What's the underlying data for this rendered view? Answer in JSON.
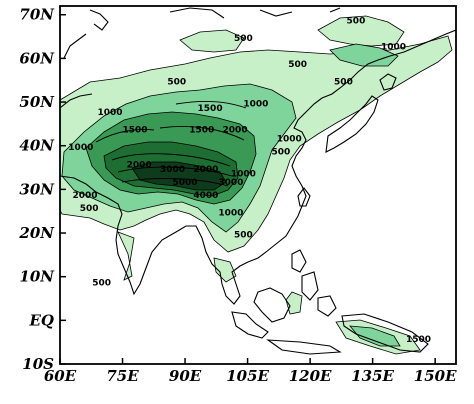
{
  "map": {
    "lon_range": [
      60,
      155
    ],
    "lat_range": [
      -10,
      72
    ],
    "x_ticks": [
      "60E",
      "75E",
      "90E",
      "105E",
      "120E",
      "135E",
      "150E"
    ],
    "x_tick_values": [
      60,
      75,
      90,
      105,
      120,
      135,
      150
    ],
    "y_ticks": [
      "70N",
      "60N",
      "50N",
      "40N",
      "30N",
      "20N",
      "10N",
      "EQ",
      "10S"
    ],
    "y_tick_values": [
      70,
      60,
      50,
      40,
      30,
      20,
      10,
      0,
      -10
    ],
    "shading_colors": [
      "#c8f0c8",
      "#7ed49a",
      "#3a9a55",
      "#1e6e34",
      "#0e3b1c"
    ],
    "coast_color": "#000000",
    "contour_labels": [
      {
        "text": "500",
        "lon": 131,
        "lat": 68
      },
      {
        "text": "500",
        "lon": 104,
        "lat": 64
      },
      {
        "text": "1000",
        "lon": 140,
        "lat": 62
      },
      {
        "text": "500",
        "lon": 117,
        "lat": 58
      },
      {
        "text": "500",
        "lon": 88,
        "lat": 54
      },
      {
        "text": "500",
        "lon": 128,
        "lat": 54
      },
      {
        "text": "1000",
        "lon": 107,
        "lat": 49
      },
      {
        "text": "1500",
        "lon": 96,
        "lat": 48
      },
      {
        "text": "1000",
        "lon": 72,
        "lat": 47
      },
      {
        "text": "1500",
        "lon": 78,
        "lat": 43
      },
      {
        "text": "1500",
        "lon": 94,
        "lat": 43
      },
      {
        "text": "2000",
        "lon": 102,
        "lat": 43
      },
      {
        "text": "1000",
        "lon": 115,
        "lat": 41
      },
      {
        "text": "1000",
        "lon": 65,
        "lat": 39
      },
      {
        "text": "500",
        "lon": 113,
        "lat": 38
      },
      {
        "text": "2000",
        "lon": 79,
        "lat": 35
      },
      {
        "text": "2000",
        "lon": 95,
        "lat": 34
      },
      {
        "text": "3000",
        "lon": 87,
        "lat": 34
      },
      {
        "text": "1000",
        "lon": 104,
        "lat": 33
      },
      {
        "text": "5000",
        "lon": 90,
        "lat": 31
      },
      {
        "text": "3000",
        "lon": 101,
        "lat": 31
      },
      {
        "text": "4000",
        "lon": 95,
        "lat": 28
      },
      {
        "text": "2000",
        "lon": 66,
        "lat": 28
      },
      {
        "text": "500",
        "lon": 67,
        "lat": 25
      },
      {
        "text": "1000",
        "lon": 101,
        "lat": 24
      },
      {
        "text": "500",
        "lon": 104,
        "lat": 19
      },
      {
        "text": "500",
        "lon": 70,
        "lat": 8
      },
      {
        "text": "1500",
        "lon": 146,
        "lat": -5
      }
    ]
  }
}
